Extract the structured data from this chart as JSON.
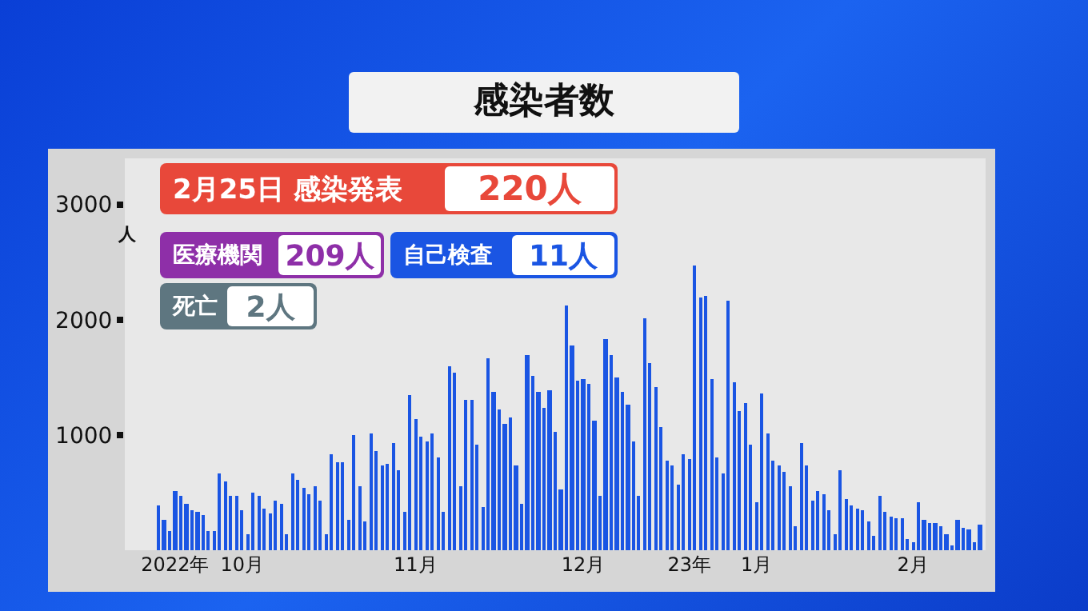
{
  "chart_data": {
    "type": "bar",
    "title": "感染者数",
    "ylabel": "人",
    "x": [
      "2022-10-01",
      "2022-10-02",
      "2022-10-03",
      "2022-10-04",
      "2022-10-05",
      "2022-10-06",
      "2022-10-07",
      "2022-10-08",
      "2022-10-09",
      "2022-10-10",
      "2022-10-11",
      "2022-10-12",
      "2022-10-13",
      "2022-10-14",
      "2022-10-15",
      "2022-10-16",
      "2022-10-17",
      "2022-10-18",
      "2022-10-19",
      "2022-10-20",
      "2022-10-21",
      "2022-10-22",
      "2022-10-23",
      "2022-10-24",
      "2022-10-25",
      "2022-10-26",
      "2022-10-27",
      "2022-10-28",
      "2022-10-29",
      "2022-10-30",
      "2022-10-31",
      "2022-11-01",
      "2022-11-02",
      "2022-11-03",
      "2022-11-04",
      "2022-11-05",
      "2022-11-06",
      "2022-11-07",
      "2022-11-08",
      "2022-11-09",
      "2022-11-10",
      "2022-11-11",
      "2022-11-12",
      "2022-11-13",
      "2022-11-14",
      "2022-11-15",
      "2022-11-16",
      "2022-11-17",
      "2022-11-18",
      "2022-11-19",
      "2022-11-20",
      "2022-11-21",
      "2022-11-22",
      "2022-11-23",
      "2022-11-24",
      "2022-11-25",
      "2022-11-26",
      "2022-11-27",
      "2022-11-28",
      "2022-11-29",
      "2022-11-30",
      "2022-12-01",
      "2022-12-02",
      "2022-12-03",
      "2022-12-04",
      "2022-12-05",
      "2022-12-06",
      "2022-12-07",
      "2022-12-08",
      "2022-12-09",
      "2022-12-10",
      "2022-12-11",
      "2022-12-12",
      "2022-12-13",
      "2022-12-14",
      "2022-12-15",
      "2022-12-16",
      "2022-12-17",
      "2022-12-18",
      "2022-12-19",
      "2022-12-20",
      "2022-12-21",
      "2022-12-22",
      "2022-12-23",
      "2022-12-24",
      "2022-12-25",
      "2022-12-26",
      "2022-12-27",
      "2022-12-28",
      "2022-12-29",
      "2022-12-30",
      "2022-12-31",
      "2023-01-01",
      "2023-01-02",
      "2023-01-03",
      "2023-01-04",
      "2023-01-05",
      "2023-01-06",
      "2023-01-07",
      "2023-01-08",
      "2023-01-09",
      "2023-01-10",
      "2023-01-11",
      "2023-01-12",
      "2023-01-13",
      "2023-01-14",
      "2023-01-15",
      "2023-01-16",
      "2023-01-17",
      "2023-01-18",
      "2023-01-19",
      "2023-01-20",
      "2023-01-21",
      "2023-01-22",
      "2023-01-23",
      "2023-01-24",
      "2023-01-25",
      "2023-01-26",
      "2023-01-27",
      "2023-01-28",
      "2023-01-29",
      "2023-01-30",
      "2023-01-31",
      "2023-02-01",
      "2023-02-02",
      "2023-02-03",
      "2023-02-04",
      "2023-02-05",
      "2023-02-06",
      "2023-02-07",
      "2023-02-08",
      "2023-02-09",
      "2023-02-10",
      "2023-02-11",
      "2023-02-12",
      "2023-02-13",
      "2023-02-14",
      "2023-02-15",
      "2023-02-16",
      "2023-02-17",
      "2023-02-18",
      "2023-02-19",
      "2023-02-20",
      "2023-02-21",
      "2023-02-22",
      "2023-02-23",
      "2023-02-24",
      "2023-02-25"
    ],
    "values": [
      390,
      260,
      160,
      510,
      470,
      400,
      350,
      340,
      310,
      160,
      170,
      670,
      600,
      470,
      470,
      350,
      140,
      500,
      470,
      360,
      320,
      430,
      400,
      140,
      670,
      610,
      540,
      490,
      550,
      430,
      140,
      830,
      770,
      770,
      270,
      1000,
      550,
      250,
      1010,
      860,
      730,
      750,
      930,
      700,
      340,
      1350,
      1140,
      980,
      950,
      1010,
      800,
      330,
      1590,
      1540,
      560,
      1310,
      1300,
      920,
      370,
      1670,
      1370,
      1220,
      1100,
      1150,
      740,
      400,
      1690,
      1510,
      1380,
      1230,
      1390,
      1030,
      530,
      2120,
      1770,
      1470,
      1480,
      1440,
      1120,
      470,
      1830,
      1690,
      1500,
      1370,
      1260,
      940,
      470,
      2010,
      1620,
      1420,
      1070,
      780,
      730,
      570,
      830,
      790,
      2470,
      2190,
      2200,
      1490,
      810,
      660,
      2160,
      1460,
      1210,
      1280,
      910,
      410,
      1360,
      1020,
      780,
      740,
      680,
      550,
      210,
      930,
      730,
      430,
      510,
      490,
      350,
      140,
      690,
      450,
      390,
      360,
      350,
      250,
      120,
      470,
      340,
      290,
      280,
      280,
      100,
      70,
      410,
      270,
      240,
      230,
      210,
      140,
      40,
      270,
      190,
      180,
      70,
      220
    ],
    "color": "#1a55e3",
    "xlim": [
      "2022-09-25",
      "2023-02-26"
    ],
    "xticks": [
      {
        "value": "2022-10-04",
        "label": "2022年"
      },
      {
        "value": "2022-10-16",
        "label": "10月"
      },
      {
        "value": "2022-11-16",
        "label": "11月"
      },
      {
        "value": "2022-12-16",
        "label": "12月"
      },
      {
        "value": "2023-01-04",
        "label": "23年"
      },
      {
        "value": "2023-01-16",
        "label": "1月"
      },
      {
        "value": "2023-02-13",
        "label": "2月"
      }
    ],
    "ylim": [
      0,
      3400
    ],
    "yticks": [
      1000,
      2000,
      3000
    ],
    "grid": false,
    "legend": false,
    "annotations": [
      "2月25日 感染発表",
      "220人",
      "医療機関",
      "209人",
      "自己検査",
      "11人",
      "死亡",
      "2人"
    ]
  }
}
